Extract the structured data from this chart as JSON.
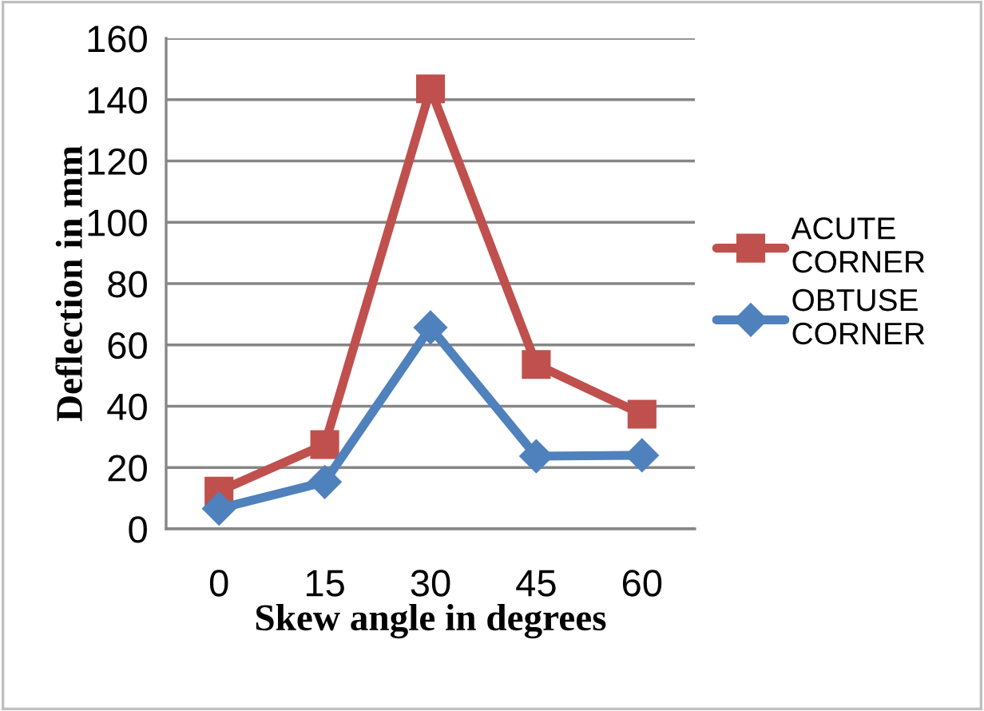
{
  "chart_data": {
    "type": "line",
    "xlabel": "Skew angle in degrees",
    "ylabel": "Deflection in mm",
    "categories": [
      "0",
      "15",
      "30",
      "45",
      "60"
    ],
    "series": [
      {
        "name": "ACUTE\nCORNER",
        "color": "#c0504d",
        "marker": "square",
        "values": [
          12.3,
          27.5,
          143.5,
          53.6,
          37.4
        ]
      },
      {
        "name": "OBTUSE\nCORNER",
        "color": "#4f81bd",
        "marker": "diamond",
        "values": [
          6.6,
          15.3,
          65.7,
          23.7,
          24
        ]
      }
    ],
    "ylim": [
      0,
      160
    ],
    "yticks": [
      0,
      20,
      40,
      60,
      80,
      100,
      120,
      140,
      160
    ],
    "grid": "y",
    "legend": "right"
  }
}
